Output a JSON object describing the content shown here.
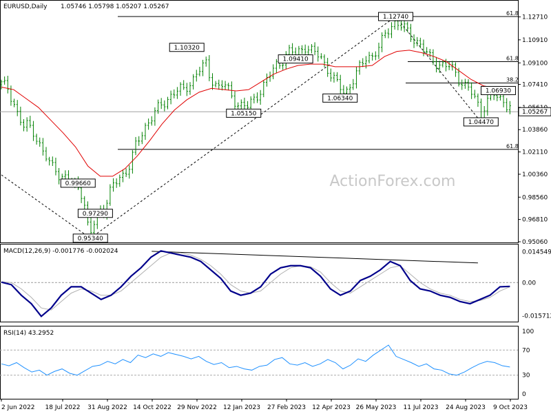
{
  "header": {
    "symbol": "EURUSD,Daily",
    "ohlc": "1.05746 1.05798 1.05207 1.05267",
    "macd": "MACD(12,26,9) -0.001776 -0.002024",
    "rsi": "RSI(14) 43.2952"
  },
  "watermark": "ActionForex.com",
  "colors": {
    "candle": "#008000",
    "ma": "#e00000",
    "macd_line": "#00008b",
    "signal": "#b0b0b0",
    "rsi_line": "#1e90ff",
    "hline": "#000000",
    "current": "#a0a0a0"
  },
  "chart_data": [
    {
      "type": "candlestick",
      "title": "EURUSD,Daily",
      "ylim": [
        0.9506,
        1.1301
      ],
      "y_ticks": [
        "1.12710",
        "1.10910",
        "1.09100",
        "1.07410",
        "1.05610",
        "1.03860",
        "1.02110",
        "1.00360",
        "0.98560",
        "0.96810",
        "0.95060"
      ],
      "current_price": "1.05267",
      "x_tick_labels": [
        "2 Jun 2022",
        "18 Jul 2022",
        "31 Aug 2022",
        "14 Oct 2022",
        "29 Nov 2022",
        "12 Jan 2023",
        "27 Feb 2023",
        "12 Apr 2023",
        "26 May 2023",
        "11 Jul 2023",
        "24 Aug 2023",
        "9 Oct 2023"
      ],
      "close_path": [
        [
          0,
          1.074
        ],
        [
          5,
          1.072
        ],
        [
          10,
          1.06
        ],
        [
          14,
          1.048
        ],
        [
          18,
          1.04
        ],
        [
          22,
          1.043
        ],
        [
          26,
          1.038
        ],
        [
          30,
          1.028
        ],
        [
          35,
          1.018
        ],
        [
          40,
          1.01
        ],
        [
          43,
          1.012
        ],
        [
          46,
          1.004
        ],
        [
          50,
          0.999
        ],
        [
          53,
          1.001
        ],
        [
          56,
          0.996
        ],
        [
          60,
          0.996
        ],
        [
          62,
          0.995
        ],
        [
          64,
          0.991
        ],
        [
          66,
          0.986
        ],
        [
          68,
          0.975
        ],
        [
          70,
          0.961
        ],
        [
          72,
          0.956
        ],
        [
          74,
          0.96
        ],
        [
          76,
          0.97
        ],
        [
          80,
          0.976
        ],
        [
          83,
          0.976
        ],
        [
          86,
          0.984
        ],
        [
          89,
          0.992
        ],
        [
          92,
          0.996
        ],
        [
          96,
          1.002
        ],
        [
          100,
          1.005
        ],
        [
          104,
          1.011
        ],
        [
          108,
          1.024
        ],
        [
          112,
          1.032
        ],
        [
          116,
          1.041
        ],
        [
          120,
          1.046
        ],
        [
          124,
          1.052
        ],
        [
          128,
          1.056
        ],
        [
          132,
          1.06
        ],
        [
          136,
          1.065
        ],
        [
          140,
          1.068
        ],
        [
          144,
          1.07
        ],
        [
          148,
          1.069
        ],
        [
          152,
          1.075
        ],
        [
          156,
          1.08
        ],
        [
          160,
          1.085
        ],
        [
          163,
          1.088
        ],
        [
          166,
          1.09
        ],
        [
          168,
          1.082
        ],
        [
          172,
          1.076
        ],
        [
          176,
          1.072
        ],
        [
          180,
          1.074
        ],
        [
          184,
          1.069
        ],
        [
          188,
          1.063
        ],
        [
          192,
          1.058
        ],
        [
          196,
          1.057
        ],
        [
          199,
          1.056
        ],
        [
          202,
          1.06
        ],
        [
          206,
          1.065
        ],
        [
          210,
          1.07
        ],
        [
          214,
          1.076
        ],
        [
          218,
          1.082
        ],
        [
          222,
          1.09
        ],
        [
          226,
          1.092
        ],
        [
          230,
          1.096
        ],
        [
          234,
          1.1
        ],
        [
          238,
          1.098
        ],
        [
          242,
          1.102
        ],
        [
          246,
          1.104
        ],
        [
          250,
          1.1
        ],
        [
          254,
          1.098
        ],
        [
          258,
          1.097
        ],
        [
          262,
          1.09
        ],
        [
          266,
          1.082
        ],
        [
          270,
          1.076
        ],
        [
          274,
          1.072
        ],
        [
          277,
          1.069
        ],
        [
          280,
          1.07
        ],
        [
          284,
          1.076
        ],
        [
          288,
          1.084
        ],
        [
          292,
          1.09
        ],
        [
          296,
          1.098
        ],
        [
          300,
          1.096
        ],
        [
          304,
          1.1
        ],
        [
          308,
          1.108
        ],
        [
          312,
          1.116
        ],
        [
          316,
          1.122
        ],
        [
          319,
          1.123
        ],
        [
          322,
          1.12
        ],
        [
          326,
          1.118
        ],
        [
          330,
          1.114
        ],
        [
          334,
          1.11
        ],
        [
          338,
          1.106
        ],
        [
          342,
          1.1
        ],
        [
          346,
          1.096
        ],
        [
          350,
          1.093
        ],
        [
          354,
          1.09
        ],
        [
          358,
          1.088
        ],
        [
          362,
          1.088
        ],
        [
          366,
          1.086
        ],
        [
          370,
          1.079
        ],
        [
          374,
          1.074
        ],
        [
          378,
          1.07
        ],
        [
          382,
          1.065
        ],
        [
          386,
          1.058
        ],
        [
          388,
          1.05
        ],
        [
          390,
          1.056
        ],
        [
          394,
          1.062
        ],
        [
          398,
          1.066
        ],
        [
          402,
          1.064
        ],
        [
          406,
          1.062
        ],
        [
          410,
          1.057
        ],
        [
          414,
          1.056
        ]
      ],
      "ma_path": [
        [
          0,
          1.072
        ],
        [
          10,
          1.07
        ],
        [
          20,
          1.063
        ],
        [
          30,
          1.056
        ],
        [
          40,
          1.046
        ],
        [
          50,
          1.036
        ],
        [
          60,
          1.025
        ],
        [
          70,
          1.01
        ],
        [
          80,
          1.002
        ],
        [
          90,
          1.002
        ],
        [
          100,
          1.008
        ],
        [
          110,
          1.018
        ],
        [
          120,
          1.03
        ],
        [
          130,
          1.043
        ],
        [
          140,
          1.054
        ],
        [
          150,
          1.062
        ],
        [
          160,
          1.068
        ],
        [
          170,
          1.071
        ],
        [
          180,
          1.07
        ],
        [
          190,
          1.069
        ],
        [
          200,
          1.07
        ],
        [
          210,
          1.076
        ],
        [
          220,
          1.082
        ],
        [
          230,
          1.086
        ],
        [
          240,
          1.089
        ],
        [
          250,
          1.09
        ],
        [
          260,
          1.09
        ],
        [
          270,
          1.088
        ],
        [
          280,
          1.088
        ],
        [
          290,
          1.088
        ],
        [
          300,
          1.089
        ],
        [
          310,
          1.096
        ],
        [
          320,
          1.1
        ],
        [
          330,
          1.101
        ],
        [
          340,
          1.099
        ],
        [
          350,
          1.096
        ],
        [
          360,
          1.092
        ],
        [
          370,
          1.085
        ],
        [
          380,
          1.078
        ],
        [
          390,
          1.073
        ],
        [
          400,
          1.071
        ],
        [
          414,
          1.07
        ]
      ],
      "annotations": [
        {
          "label": "0.95340",
          "t": 72,
          "price": 0.9534
        },
        {
          "label": "0.99660",
          "t": 62,
          "price": 0.9966
        },
        {
          "label": "0.97290",
          "t": 76,
          "price": 0.9729
        },
        {
          "label": "1.10320",
          "t": 150,
          "price": 1.1032
        },
        {
          "label": "1.05150",
          "t": 196,
          "price": 1.0515
        },
        {
          "label": "1.09410",
          "t": 238,
          "price": 1.0941
        },
        {
          "label": "1.06340",
          "t": 274,
          "price": 1.0634
        },
        {
          "label": "1.12740",
          "t": 319,
          "price": 1.1274
        },
        {
          "label": "1.04470",
          "t": 388,
          "price": 1.0447
        },
        {
          "label": "1.06930",
          "t": 402,
          "price": 1.0693
        }
      ],
      "fib_levels": [
        {
          "label": "61.8",
          "price": 1.1274
        },
        {
          "label": "61.8",
          "price": 1.092
        },
        {
          "label": "38.2",
          "price": 1.0752
        },
        {
          "label": "61.8",
          "price": 1.0231
        }
      ]
    },
    {
      "type": "line",
      "title": "MACD(12,26,9) -0.001776 -0.002024",
      "ylim": [
        -0.0185,
        0.0177
      ],
      "y_ticks": [
        "0.014549",
        "0.00",
        "-0.015712"
      ],
      "series": [
        {
          "name": "MACD",
          "values": [
            0.0002,
            -0.001,
            -0.006,
            -0.01,
            -0.016,
            -0.012,
            -0.006,
            -0.002,
            -0.002,
            -0.005,
            -0.008,
            -0.006,
            -0.002,
            0.003,
            0.007,
            0.012,
            0.015,
            0.014,
            0.013,
            0.012,
            0.01,
            0.006,
            0.002,
            -0.004,
            -0.006,
            -0.005,
            -0.002,
            0.004,
            0.007,
            0.008,
            0.008,
            0.007,
            0.003,
            -0.003,
            -0.006,
            -0.004,
            0.001,
            0.003,
            0.006,
            0.01,
            0.008,
            0.001,
            -0.003,
            -0.004,
            -0.006,
            -0.007,
            -0.009,
            -0.01,
            -0.008,
            -0.006,
            -0.002,
            -0.0018
          ]
        },
        {
          "name": "Signal",
          "values": [
            0.0004,
            0.0,
            -0.003,
            -0.007,
            -0.012,
            -0.013,
            -0.009,
            -0.005,
            -0.003,
            -0.004,
            -0.006,
            -0.006,
            -0.004,
            0.0,
            0.004,
            0.008,
            0.012,
            0.014,
            0.014,
            0.013,
            0.011,
            0.008,
            0.004,
            -0.001,
            -0.004,
            -0.005,
            -0.004,
            0.0,
            0.004,
            0.007,
            0.008,
            0.0075,
            0.005,
            0.0,
            -0.004,
            -0.005,
            -0.002,
            0.001,
            0.004,
            0.007,
            0.008,
            0.004,
            0.0,
            -0.003,
            -0.005,
            -0.006,
            -0.008,
            -0.009,
            -0.0085,
            -0.007,
            -0.004,
            -0.002
          ]
        }
      ]
    },
    {
      "type": "line",
      "title": "RSI(14) 43.2952",
      "ylim": [
        0,
        100
      ],
      "y_ticks": [
        "100",
        "70",
        "30",
        "0"
      ],
      "series": [
        {
          "name": "RSI",
          "values": [
            48,
            45,
            50,
            42,
            35,
            38,
            30,
            36,
            40,
            33,
            30,
            37,
            44,
            46,
            52,
            48,
            55,
            50,
            62,
            58,
            64,
            60,
            66,
            63,
            60,
            56,
            60,
            52,
            47,
            50,
            42,
            44,
            40,
            38,
            44,
            46,
            55,
            58,
            48,
            46,
            50,
            44,
            48,
            55,
            50,
            40,
            46,
            56,
            52,
            62,
            70,
            78,
            60,
            55,
            50,
            44,
            48,
            40,
            38,
            32,
            30,
            35,
            42,
            48,
            52,
            50,
            45,
            43
          ]
        }
      ]
    }
  ]
}
